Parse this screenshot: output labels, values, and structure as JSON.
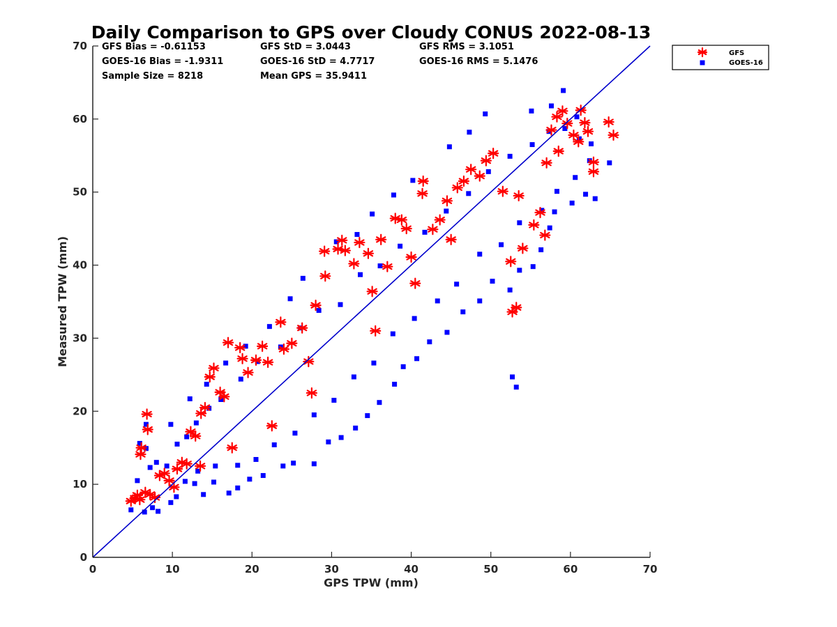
{
  "chart_data": {
    "type": "scatter",
    "title": "Daily Comparison to GPS over Cloudy CONUS 2022-08-13",
    "xlabel": "GPS TPW (mm)",
    "ylabel": "Measured TPW (mm)",
    "xlim": [
      0,
      70
    ],
    "ylim": [
      0,
      70
    ],
    "xticks": [
      "0",
      "10",
      "20",
      "30",
      "40",
      "50",
      "60",
      "70"
    ],
    "yticks": [
      "0",
      "10",
      "20",
      "30",
      "40",
      "50",
      "60",
      "70"
    ],
    "grid": false,
    "legend_position": "outside top-right",
    "stats": {
      "gfs_bias": "GFS Bias = -0.61153",
      "gfs_std": "GFS StD = 3.0443",
      "gfs_rms": "GFS RMS = 3.1051",
      "goes_bias": "GOES-16 Bias = -1.9311",
      "goes_std": "GOES-16 StD = 4.7717",
      "goes_rms": "GOES-16 RMS = 5.1476",
      "sample_size": "Sample Size = 8218",
      "mean_gps": "Mean GPS = 35.9411"
    },
    "reference_line": {
      "x": [
        0,
        70
      ],
      "y": [
        0,
        70
      ],
      "color": "#0000cc"
    },
    "series": [
      {
        "name": "GFS",
        "marker": "asterisk",
        "color": "#ff0000",
        "points": [
          [
            4.8,
            7.7
          ],
          [
            5.3,
            8.1
          ],
          [
            5.6,
            8.5
          ],
          [
            5.9,
            7.9
          ],
          [
            6.0,
            14.1
          ],
          [
            6.1,
            15.0
          ],
          [
            6.8,
            19.6
          ],
          [
            6.9,
            17.5
          ],
          [
            6.6,
            8.9
          ],
          [
            7.2,
            8.6
          ],
          [
            7.8,
            8.2
          ],
          [
            8.4,
            11.2
          ],
          [
            9.0,
            11.5
          ],
          [
            9.6,
            10.5
          ],
          [
            10.2,
            9.6
          ],
          [
            10.6,
            12.1
          ],
          [
            11.2,
            13.0
          ],
          [
            11.8,
            12.8
          ],
          [
            12.3,
            17.2
          ],
          [
            12.9,
            16.6
          ],
          [
            13.6,
            19.7
          ],
          [
            14.1,
            20.5
          ],
          [
            14.7,
            24.7
          ],
          [
            15.2,
            25.9
          ],
          [
            16.0,
            22.6
          ],
          [
            16.5,
            22.0
          ],
          [
            17.0,
            29.4
          ],
          [
            18.5,
            28.7
          ],
          [
            18.8,
            27.2
          ],
          [
            19.5,
            25.3
          ],
          [
            20.5,
            27.0
          ],
          [
            21.3,
            28.9
          ],
          [
            22.0,
            26.7
          ],
          [
            23.6,
            32.2
          ],
          [
            24.0,
            28.5
          ],
          [
            25.0,
            29.3
          ],
          [
            26.3,
            31.4
          ],
          [
            27.1,
            26.8
          ],
          [
            28.0,
            34.5
          ],
          [
            29.2,
            38.5
          ],
          [
            29.1,
            41.9
          ],
          [
            30.8,
            42.2
          ],
          [
            31.3,
            43.4
          ],
          [
            31.7,
            42.0
          ],
          [
            32.8,
            40.2
          ],
          [
            33.5,
            43.1
          ],
          [
            34.6,
            41.6
          ],
          [
            35.1,
            36.4
          ],
          [
            36.2,
            43.5
          ],
          [
            37.0,
            39.8
          ],
          [
            38.0,
            46.4
          ],
          [
            38.8,
            46.2
          ],
          [
            39.4,
            45.0
          ],
          [
            40.0,
            41.1
          ],
          [
            41.4,
            49.8
          ],
          [
            41.5,
            51.5
          ],
          [
            42.7,
            44.9
          ],
          [
            43.6,
            46.2
          ],
          [
            44.5,
            48.8
          ],
          [
            45.8,
            50.6
          ],
          [
            46.6,
            51.5
          ],
          [
            47.5,
            53.1
          ],
          [
            48.6,
            52.2
          ],
          [
            49.4,
            54.3
          ],
          [
            50.3,
            55.3
          ],
          [
            51.5,
            50.1
          ],
          [
            52.7,
            33.6
          ],
          [
            53.2,
            34.2
          ],
          [
            52.5,
            40.5
          ],
          [
            54.0,
            42.3
          ],
          [
            55.4,
            45.5
          ],
          [
            56.2,
            47.2
          ],
          [
            56.8,
            44.1
          ],
          [
            57.6,
            58.5
          ],
          [
            58.3,
            60.3
          ],
          [
            59.0,
            61.1
          ],
          [
            59.6,
            59.4
          ],
          [
            60.4,
            57.8
          ],
          [
            61.0,
            56.9
          ],
          [
            61.3,
            61.2
          ],
          [
            61.8,
            59.5
          ],
          [
            62.2,
            58.3
          ],
          [
            62.9,
            54.1
          ],
          [
            62.9,
            52.8
          ],
          [
            64.8,
            59.6
          ],
          [
            65.4,
            57.8
          ],
          [
            58.5,
            55.6
          ],
          [
            57.0,
            54.0
          ],
          [
            53.5,
            49.5
          ],
          [
            45.0,
            43.5
          ],
          [
            40.5,
            37.5
          ],
          [
            35.5,
            31.0
          ],
          [
            27.5,
            22.5
          ],
          [
            22.5,
            18.0
          ],
          [
            17.5,
            15.0
          ],
          [
            13.5,
            12.5
          ]
        ]
      },
      {
        "name": "GOES-16",
        "marker": "square",
        "color": "#0000ff",
        "points": [
          [
            4.8,
            6.5
          ],
          [
            5.6,
            10.5
          ],
          [
            6.5,
            6.2
          ],
          [
            7.5,
            6.8
          ],
          [
            8.2,
            6.3
          ],
          [
            9.8,
            7.5
          ],
          [
            10.5,
            8.3
          ],
          [
            11.6,
            10.4
          ],
          [
            12.8,
            10.1
          ],
          [
            13.9,
            8.6
          ],
          [
            15.2,
            10.3
          ],
          [
            17.1,
            8.8
          ],
          [
            18.2,
            9.5
          ],
          [
            19.7,
            10.7
          ],
          [
            21.4,
            11.2
          ],
          [
            23.9,
            12.5
          ],
          [
            25.2,
            12.9
          ],
          [
            27.8,
            12.8
          ],
          [
            29.6,
            15.8
          ],
          [
            31.2,
            16.4
          ],
          [
            33.0,
            17.7
          ],
          [
            34.5,
            19.4
          ],
          [
            36.0,
            21.2
          ],
          [
            37.9,
            23.7
          ],
          [
            39.0,
            26.1
          ],
          [
            40.7,
            27.2
          ],
          [
            42.3,
            29.5
          ],
          [
            44.5,
            30.8
          ],
          [
            46.5,
            33.6
          ],
          [
            48.6,
            35.1
          ],
          [
            50.2,
            37.8
          ],
          [
            52.4,
            36.6
          ],
          [
            53.6,
            39.3
          ],
          [
            55.3,
            39.8
          ],
          [
            52.7,
            24.7
          ],
          [
            53.2,
            23.3
          ],
          [
            56.3,
            42.1
          ],
          [
            57.4,
            45.1
          ],
          [
            58.0,
            47.3
          ],
          [
            60.2,
            48.5
          ],
          [
            61.9,
            49.7
          ],
          [
            63.1,
            49.1
          ],
          [
            64.9,
            54.0
          ],
          [
            62.6,
            56.6
          ],
          [
            60.8,
            60.3
          ],
          [
            59.1,
            63.9
          ],
          [
            57.6,
            61.8
          ],
          [
            55.1,
            61.1
          ],
          [
            49.3,
            60.7
          ],
          [
            47.3,
            58.2
          ],
          [
            44.8,
            56.2
          ],
          [
            40.2,
            51.6
          ],
          [
            37.8,
            49.6
          ],
          [
            35.1,
            47.0
          ],
          [
            33.2,
            44.2
          ],
          [
            30.6,
            43.2
          ],
          [
            26.4,
            38.2
          ],
          [
            24.8,
            35.4
          ],
          [
            22.2,
            31.6
          ],
          [
            19.2,
            28.9
          ],
          [
            16.7,
            26.6
          ],
          [
            14.3,
            23.7
          ],
          [
            12.2,
            21.7
          ],
          [
            9.8,
            18.2
          ],
          [
            6.7,
            14.9
          ],
          [
            8.0,
            13.0
          ],
          [
            9.3,
            12.5
          ],
          [
            7.2,
            12.3
          ],
          [
            5.9,
            15.6
          ],
          [
            6.7,
            18.2
          ],
          [
            10.6,
            15.5
          ],
          [
            11.8,
            16.5
          ],
          [
            13.0,
            18.4
          ],
          [
            14.6,
            20.4
          ],
          [
            16.1,
            21.6
          ],
          [
            18.6,
            24.4
          ],
          [
            20.7,
            26.8
          ],
          [
            23.6,
            28.8
          ],
          [
            26.1,
            31.4
          ],
          [
            28.4,
            33.8
          ],
          [
            31.1,
            34.6
          ],
          [
            33.6,
            38.7
          ],
          [
            36.1,
            39.9
          ],
          [
            38.6,
            42.6
          ],
          [
            41.7,
            44.5
          ],
          [
            44.4,
            47.4
          ],
          [
            47.2,
            49.8
          ],
          [
            49.7,
            52.8
          ],
          [
            52.4,
            54.9
          ],
          [
            55.2,
            56.5
          ],
          [
            57.3,
            58.3
          ],
          [
            59.3,
            58.7
          ],
          [
            61.1,
            57.3
          ],
          [
            62.4,
            54.3
          ],
          [
            60.6,
            52.0
          ],
          [
            58.3,
            50.1
          ],
          [
            56.4,
            47.5
          ],
          [
            53.6,
            45.8
          ],
          [
            51.3,
            42.8
          ],
          [
            48.6,
            41.5
          ],
          [
            45.7,
            37.4
          ],
          [
            43.3,
            35.1
          ],
          [
            40.4,
            32.7
          ],
          [
            37.7,
            30.6
          ],
          [
            35.3,
            26.6
          ],
          [
            32.8,
            24.7
          ],
          [
            30.3,
            21.5
          ],
          [
            27.8,
            19.5
          ],
          [
            25.4,
            17.0
          ],
          [
            22.8,
            15.4
          ],
          [
            20.5,
            13.4
          ],
          [
            18.2,
            12.6
          ],
          [
            15.4,
            12.5
          ],
          [
            13.2,
            11.8
          ]
        ]
      }
    ]
  }
}
